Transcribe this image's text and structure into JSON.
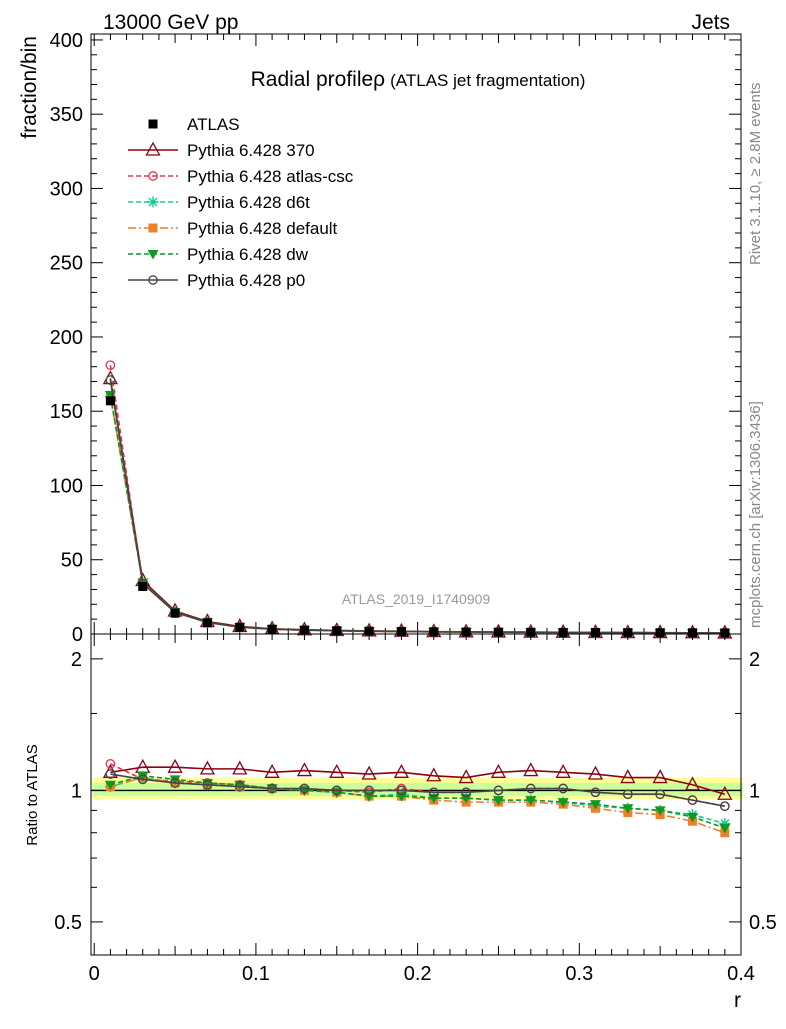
{
  "header": {
    "left": "13000 GeV pp",
    "right": "Jets"
  },
  "side": {
    "rivet": "Rivet 3.1.10, ≥ 2.8M events",
    "mcplots": "mcplots.cern.ch [arXiv:1306.3436]"
  },
  "chart_data": {
    "type": "line",
    "title": "Radial profile",
    "title_symbol": "ρ",
    "title_suffix": "(ATLAS jet fragmentation)",
    "watermark": "ATLAS_2019_I1740909",
    "xlabel": "r",
    "ylabel": "fraction/bin",
    "ratio_ylabel": "Ratio to ATLAS",
    "xlim": [
      -0.002,
      0.4
    ],
    "ylim": [
      0,
      404
    ],
    "ratio_ylim": [
      0.42,
      2.28
    ],
    "x_ticks": [
      0,
      0.1,
      0.2,
      0.3,
      0.4
    ],
    "x_tick_labels": [
      "0",
      "0.1",
      "0.2",
      "0.3",
      "0.4"
    ],
    "y_ticks": [
      0,
      50,
      100,
      150,
      200,
      250,
      300,
      350,
      400
    ],
    "y_tick_labels": [
      "0",
      "50",
      "100",
      "150",
      "200",
      "250",
      "300",
      "350",
      "400"
    ],
    "ratio_ticks": [
      0.5,
      1,
      2
    ],
    "ratio_tick_labels": [
      "0.5",
      "1",
      "2"
    ],
    "x": [
      0.01,
      0.03,
      0.05,
      0.07,
      0.09,
      0.11,
      0.13,
      0.15,
      0.17,
      0.19,
      0.21,
      0.23,
      0.25,
      0.27,
      0.29,
      0.31,
      0.33,
      0.35,
      0.37,
      0.39
    ],
    "data": {
      "name": "ATLAS",
      "color": "#000000",
      "values": [
        157,
        32,
        14,
        7.5,
        4.5,
        3.2,
        2.6,
        2.2,
        1.9,
        1.7,
        1.5,
        1.35,
        1.25,
        1.15,
        1.05,
        0.97,
        0.9,
        0.85,
        0.8,
        0.75
      ]
    },
    "band_colors": [
      "#ffff99",
      "#ccff99"
    ],
    "series": [
      {
        "name": "Pythia 6.428 370",
        "color": "#8b0016",
        "marker": "open-triangle",
        "dash": "",
        "values": [
          172,
          36,
          15.5,
          8.4,
          5.1,
          3.5,
          2.9,
          2.4,
          2.1,
          1.9,
          1.6,
          1.45,
          1.38,
          1.28,
          1.16,
          1.06,
          0.96,
          0.91,
          0.82,
          0.73
        ],
        "ratio": [
          1.1,
          1.13,
          1.13,
          1.12,
          1.12,
          1.1,
          1.11,
          1.1,
          1.09,
          1.1,
          1.08,
          1.07,
          1.1,
          1.11,
          1.1,
          1.09,
          1.07,
          1.07,
          1.03,
          0.98
        ]
      },
      {
        "name": "Pythia 6.428 atlas-csc",
        "color": "#e8304f",
        "marker": "open-circle",
        "dash": "5,3",
        "values": [
          181,
          34,
          14.8,
          7.9,
          4.6,
          3.24,
          2.63,
          2.2,
          1.88,
          1.73,
          1.5,
          1.33,
          1.25,
          1.17,
          1.06,
          0.96,
          0.88,
          0.83,
          0.76,
          0.69
        ],
        "ratio": [
          1.15,
          1.06,
          1.05,
          1.04,
          1.03,
          1.01,
          1.01,
          1.0,
          0.99,
          1.01,
          0.99,
          0.99,
          1.0,
          1.01,
          1.01,
          0.99,
          0.98,
          0.98,
          0.95,
          0.92
        ]
      },
      {
        "name": "Pythia 6.428 d6t",
        "color": "#11cc99",
        "marker": "star",
        "dash": "5,3",
        "values": [
          160,
          34.5,
          14.6,
          7.8,
          4.6,
          3.24,
          2.6,
          2.15,
          1.83,
          1.66,
          1.43,
          1.29,
          1.19,
          1.09,
          0.98,
          0.89,
          0.82,
          0.76,
          0.71,
          0.63
        ],
        "ratio": [
          1.02,
          1.07,
          1.04,
          1.03,
          1.02,
          1.01,
          1.0,
          0.99,
          0.97,
          0.98,
          0.96,
          0.96,
          0.95,
          0.95,
          0.94,
          0.92,
          0.91,
          0.9,
          0.88,
          0.84
        ]
      },
      {
        "name": "Pythia 6.428 default",
        "color": "#f07f2a",
        "marker": "filled-square",
        "dash": "8,3,2,3",
        "values": [
          160,
          34.2,
          14.5,
          7.8,
          4.6,
          3.23,
          2.6,
          2.15,
          1.82,
          1.65,
          1.42,
          1.26,
          1.17,
          1.07,
          0.98,
          0.88,
          0.8,
          0.75,
          0.68,
          0.6
        ],
        "ratio": [
          1.02,
          1.07,
          1.04,
          1.03,
          1.02,
          1.01,
          1.0,
          0.99,
          0.97,
          0.97,
          0.95,
          0.94,
          0.94,
          0.94,
          0.93,
          0.91,
          0.89,
          0.88,
          0.85,
          0.8
        ]
      },
      {
        "name": "Pythia 6.428 dw",
        "color": "#0e9a1e",
        "marker": "filled-triangle-down",
        "dash": "5,3",
        "values": [
          161,
          34.6,
          14.8,
          7.9,
          4.6,
          3.25,
          2.62,
          2.15,
          1.84,
          1.67,
          1.44,
          1.3,
          1.2,
          1.1,
          0.99,
          0.89,
          0.82,
          0.77,
          0.7,
          0.63
        ],
        "ratio": [
          1.03,
          1.08,
          1.06,
          1.04,
          1.03,
          1.01,
          1.0,
          0.99,
          0.97,
          0.97,
          0.96,
          0.96,
          0.95,
          0.95,
          0.94,
          0.93,
          0.91,
          0.9,
          0.87,
          0.82
        ]
      },
      {
        "name": "Pythia 6.428 p0",
        "color": "#444444",
        "marker": "open-circle",
        "dash": "",
        "values": [
          171,
          33.9,
          14.6,
          7.8,
          4.6,
          3.25,
          2.63,
          2.2,
          1.9,
          1.7,
          1.48,
          1.34,
          1.25,
          1.16,
          1.06,
          0.96,
          0.88,
          0.83,
          0.76,
          0.69
        ],
        "ratio": [
          1.09,
          1.06,
          1.04,
          1.03,
          1.02,
          1.01,
          1.01,
          1.0,
          1.0,
          1.0,
          0.99,
          0.99,
          1.0,
          1.01,
          1.01,
          0.99,
          0.98,
          0.98,
          0.95,
          0.92
        ]
      }
    ]
  }
}
